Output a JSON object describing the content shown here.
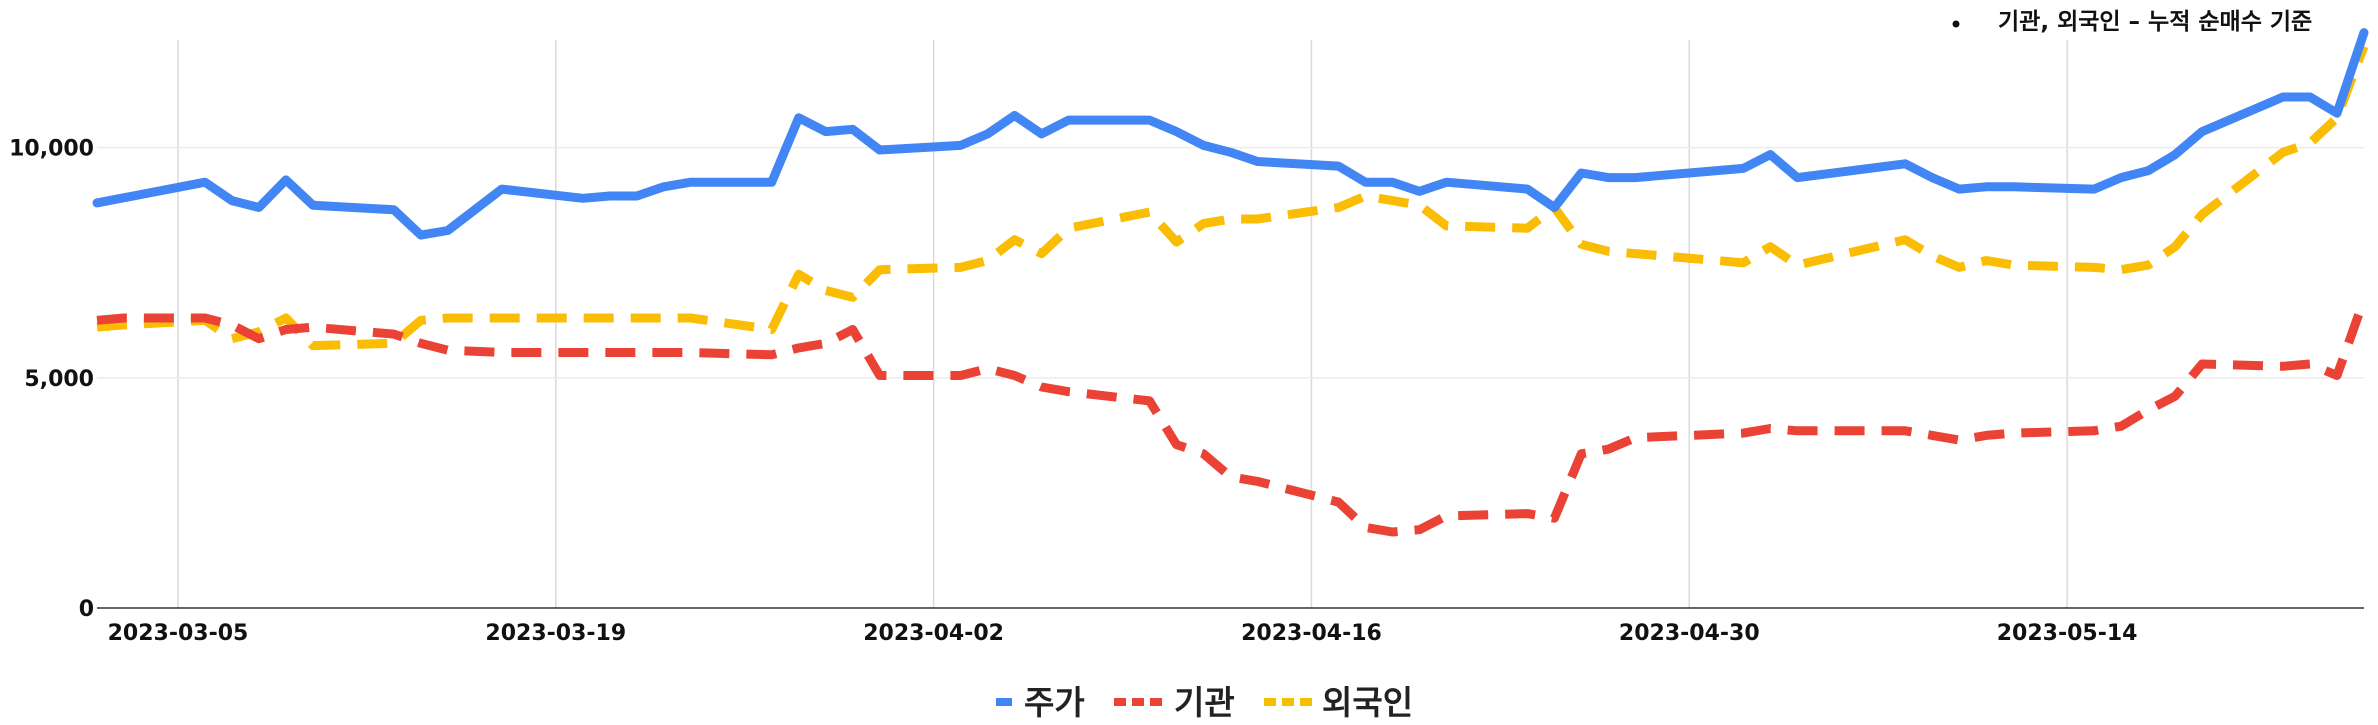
{
  "chart_data": {
    "type": "line",
    "note": "기관, 외국인 – 누적 순매수 기준",
    "x_ticks": [
      "2023-03-05",
      "2023-03-19",
      "2023-04-02",
      "2023-04-16",
      "2023-04-30",
      "2023-05-14"
    ],
    "y_ticks": [
      "0",
      "5,000",
      "10,000"
    ],
    "xlim": [
      "2023-03-02",
      "2023-05-25"
    ],
    "ylim": [
      0,
      12600
    ],
    "grid": true,
    "legend_position": "bottom",
    "series": [
      {
        "name": "주가",
        "color": "#4285F4",
        "dash": "solid",
        "points": [
          [
            "2023-03-02",
            8800
          ],
          [
            "2023-03-06",
            9250
          ],
          [
            "2023-03-07",
            8850
          ],
          [
            "2023-03-08",
            8700
          ],
          [
            "2023-03-09",
            9300
          ],
          [
            "2023-03-10",
            8750
          ],
          [
            "2023-03-13",
            8650
          ],
          [
            "2023-03-14",
            8100
          ],
          [
            "2023-03-15",
            8200
          ],
          [
            "2023-03-17",
            9100
          ],
          [
            "2023-03-20",
            8900
          ],
          [
            "2023-03-21",
            8950
          ],
          [
            "2023-03-22",
            8950
          ],
          [
            "2023-03-23",
            9150
          ],
          [
            "2023-03-24",
            9250
          ],
          [
            "2023-03-27",
            9250
          ],
          [
            "2023-03-28",
            10650
          ],
          [
            "2023-03-29",
            10350
          ],
          [
            "2023-03-30",
            10400
          ],
          [
            "2023-03-31",
            9950
          ],
          [
            "2023-04-03",
            10050
          ],
          [
            "2023-04-04",
            10300
          ],
          [
            "2023-04-05",
            10700
          ],
          [
            "2023-04-06",
            10300
          ],
          [
            "2023-04-07",
            10600
          ],
          [
            "2023-04-10",
            10600
          ],
          [
            "2023-04-11",
            10350
          ],
          [
            "2023-04-12",
            10050
          ],
          [
            "2023-04-13",
            9900
          ],
          [
            "2023-04-14",
            9700
          ],
          [
            "2023-04-17",
            9600
          ],
          [
            "2023-04-18",
            9250
          ],
          [
            "2023-04-19",
            9250
          ],
          [
            "2023-04-20",
            9050
          ],
          [
            "2023-04-21",
            9250
          ],
          [
            "2023-04-24",
            9100
          ],
          [
            "2023-04-25",
            8700
          ],
          [
            "2023-04-26",
            9450
          ],
          [
            "2023-04-27",
            9350
          ],
          [
            "2023-04-28",
            9350
          ],
          [
            "2023-05-02",
            9550
          ],
          [
            "2023-05-03",
            9850
          ],
          [
            "2023-05-04",
            9350
          ],
          [
            "2023-05-08",
            9650
          ],
          [
            "2023-05-09",
            9350
          ],
          [
            "2023-05-10",
            9100
          ],
          [
            "2023-05-11",
            9150
          ],
          [
            "2023-05-12",
            9150
          ],
          [
            "2023-05-15",
            9100
          ],
          [
            "2023-05-16",
            9350
          ],
          [
            "2023-05-17",
            9500
          ],
          [
            "2023-05-18",
            9850
          ],
          [
            "2023-05-19",
            10350
          ],
          [
            "2023-05-22",
            11100
          ],
          [
            "2023-05-23",
            11100
          ],
          [
            "2023-05-24",
            10750
          ],
          [
            "2023-05-25",
            12500
          ]
        ]
      },
      {
        "name": "기관",
        "color": "#EA4335",
        "dash": "dashed",
        "points": [
          [
            "2023-03-02",
            6250
          ],
          [
            "2023-03-03",
            6300
          ],
          [
            "2023-03-06",
            6300
          ],
          [
            "2023-03-07",
            6150
          ],
          [
            "2023-03-08",
            5850
          ],
          [
            "2023-03-09",
            6050
          ],
          [
            "2023-03-10",
            6100
          ],
          [
            "2023-03-13",
            5950
          ],
          [
            "2023-03-14",
            5750
          ],
          [
            "2023-03-15",
            5600
          ],
          [
            "2023-03-17",
            5550
          ],
          [
            "2023-03-24",
            5550
          ],
          [
            "2023-03-27",
            5500
          ],
          [
            "2023-03-28",
            5650
          ],
          [
            "2023-03-29",
            5750
          ],
          [
            "2023-03-30",
            6050
          ],
          [
            "2023-03-31",
            5050
          ],
          [
            "2023-04-03",
            5050
          ],
          [
            "2023-04-04",
            5200
          ],
          [
            "2023-04-05",
            5050
          ],
          [
            "2023-04-06",
            4800
          ],
          [
            "2023-04-07",
            4700
          ],
          [
            "2023-04-10",
            4500
          ],
          [
            "2023-04-11",
            3550
          ],
          [
            "2023-04-12",
            3350
          ],
          [
            "2023-04-13",
            2850
          ],
          [
            "2023-04-14",
            2750
          ],
          [
            "2023-04-17",
            2300
          ],
          [
            "2023-04-18",
            1750
          ],
          [
            "2023-04-19",
            1650
          ],
          [
            "2023-04-20",
            1700
          ],
          [
            "2023-04-21",
            2000
          ],
          [
            "2023-04-24",
            2050
          ],
          [
            "2023-04-25",
            1950
          ],
          [
            "2023-04-26",
            3350
          ],
          [
            "2023-04-27",
            3450
          ],
          [
            "2023-04-28",
            3700
          ],
          [
            "2023-05-02",
            3800
          ],
          [
            "2023-05-03",
            3900
          ],
          [
            "2023-05-04",
            3850
          ],
          [
            "2023-05-08",
            3850
          ],
          [
            "2023-05-09",
            3750
          ],
          [
            "2023-05-10",
            3650
          ],
          [
            "2023-05-11",
            3750
          ],
          [
            "2023-05-12",
            3800
          ],
          [
            "2023-05-15",
            3850
          ],
          [
            "2023-05-16",
            3950
          ],
          [
            "2023-05-17",
            4300
          ],
          [
            "2023-05-18",
            4600
          ],
          [
            "2023-05-19",
            5300
          ],
          [
            "2023-05-22",
            5250
          ],
          [
            "2023-05-23",
            5300
          ],
          [
            "2023-05-24",
            5050
          ],
          [
            "2023-05-25",
            6700
          ]
        ]
      },
      {
        "name": "외국인",
        "color": "#FBBC04",
        "dash": "dashed",
        "points": [
          [
            "2023-03-02",
            6100
          ],
          [
            "2023-03-03",
            6150
          ],
          [
            "2023-03-06",
            6250
          ],
          [
            "2023-03-07",
            5850
          ],
          [
            "2023-03-08",
            6000
          ],
          [
            "2023-03-09",
            6300
          ],
          [
            "2023-03-10",
            5700
          ],
          [
            "2023-03-13",
            5750
          ],
          [
            "2023-03-14",
            6250
          ],
          [
            "2023-03-15",
            6300
          ],
          [
            "2023-03-24",
            6300
          ],
          [
            "2023-03-27",
            6050
          ],
          [
            "2023-03-28",
            7250
          ],
          [
            "2023-03-29",
            6900
          ],
          [
            "2023-03-30",
            6750
          ],
          [
            "2023-03-31",
            7350
          ],
          [
            "2023-04-03",
            7400
          ],
          [
            "2023-04-04",
            7550
          ],
          [
            "2023-04-05",
            8000
          ],
          [
            "2023-04-06",
            7700
          ],
          [
            "2023-04-07",
            8250
          ],
          [
            "2023-04-10",
            8600
          ],
          [
            "2023-04-11",
            7950
          ],
          [
            "2023-04-12",
            8350
          ],
          [
            "2023-04-13",
            8450
          ],
          [
            "2023-04-14",
            8450
          ],
          [
            "2023-04-17",
            8700
          ],
          [
            "2023-04-18",
            8950
          ],
          [
            "2023-04-19",
            8850
          ],
          [
            "2023-04-20",
            8750
          ],
          [
            "2023-04-21",
            8300
          ],
          [
            "2023-04-24",
            8250
          ],
          [
            "2023-04-25",
            8700
          ],
          [
            "2023-04-26",
            7900
          ],
          [
            "2023-04-27",
            7750
          ],
          [
            "2023-04-28",
            7700
          ],
          [
            "2023-05-02",
            7500
          ],
          [
            "2023-05-03",
            7850
          ],
          [
            "2023-05-04",
            7450
          ],
          [
            "2023-05-08",
            8000
          ],
          [
            "2023-05-09",
            7650
          ],
          [
            "2023-05-10",
            7400
          ],
          [
            "2023-05-11",
            7550
          ],
          [
            "2023-05-12",
            7450
          ],
          [
            "2023-05-15",
            7400
          ],
          [
            "2023-05-16",
            7350
          ],
          [
            "2023-05-17",
            7450
          ],
          [
            "2023-05-18",
            7850
          ],
          [
            "2023-05-19",
            8550
          ],
          [
            "2023-05-22",
            9900
          ],
          [
            "2023-05-23",
            10100
          ],
          [
            "2023-05-24",
            10650
          ],
          [
            "2023-05-25",
            12200
          ]
        ]
      }
    ]
  }
}
